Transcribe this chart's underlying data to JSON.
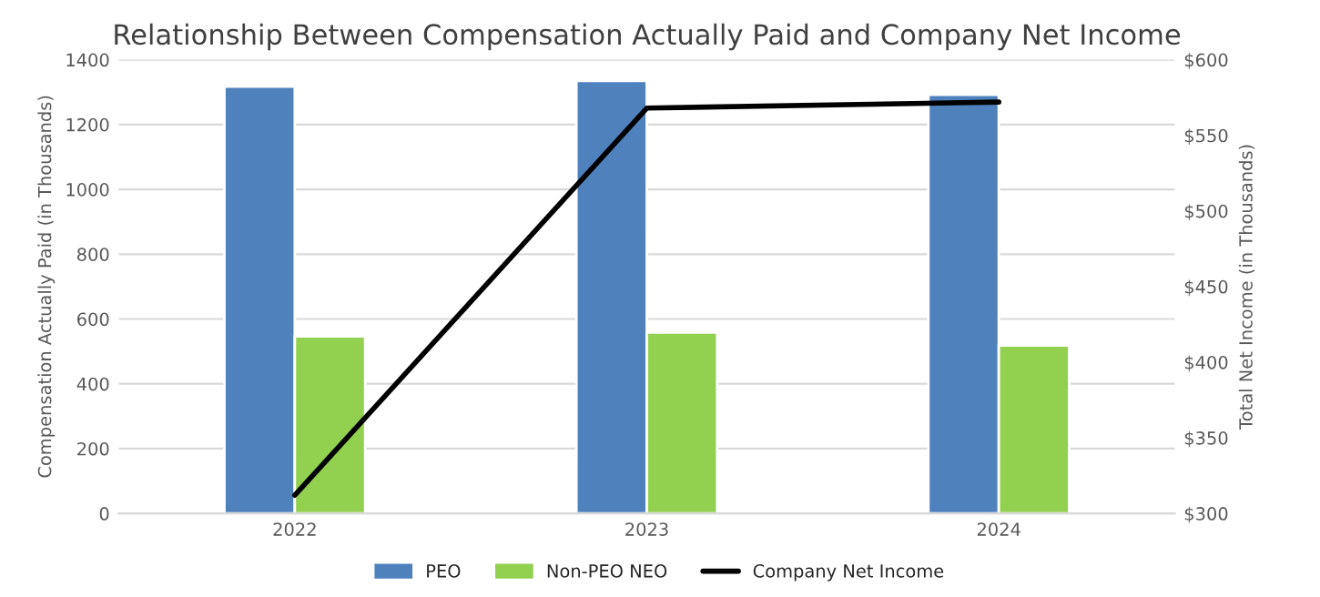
{
  "chart_data": {
    "type": "bar",
    "title": "Relationship Between Compensation Actually Paid and Company Net Income",
    "ylabel": "Compensation Actually Paid (in Thousands)",
    "y2label": "Total Net Income (in Thousands)",
    "categories": [
      "2022",
      "2023",
      "2024"
    ],
    "series": [
      {
        "name": "PEO",
        "color": "#4f81bd",
        "values": [
          1317,
          1335,
          1292
        ]
      },
      {
        "name": "Non-PEO NEO",
        "color": "#92d050",
        "values": [
          546,
          558,
          518
        ]
      },
      {
        "name": "Company Net Income",
        "type": "line",
        "axis": "y2",
        "color": "#000000",
        "values": [
          312,
          568,
          572
        ]
      }
    ],
    "ylim": [
      0,
      1400
    ],
    "yticks": [
      0,
      200,
      400,
      600,
      800,
      1000,
      1200,
      1400
    ],
    "y2lim": [
      300,
      600
    ],
    "y2ticks": [
      {
        "value": 300,
        "label": "$300"
      },
      {
        "value": 350,
        "label": "$350"
      },
      {
        "value": 400,
        "label": "$400"
      },
      {
        "value": 450,
        "label": "$450"
      },
      {
        "value": 500,
        "label": "$500"
      },
      {
        "value": 550,
        "label": "$550"
      },
      {
        "value": 600,
        "label": "$600"
      }
    ],
    "grid": "y",
    "legend": "bottom"
  }
}
